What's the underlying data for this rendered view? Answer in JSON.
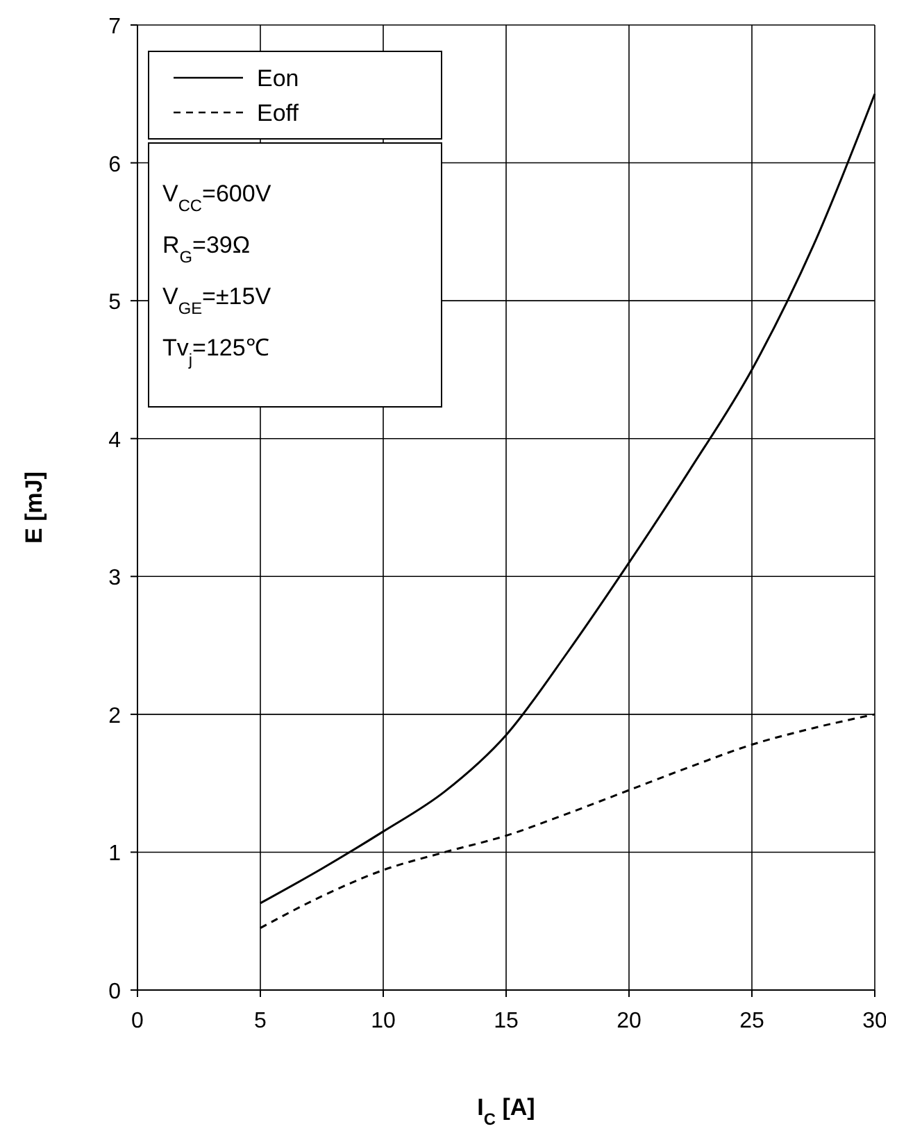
{
  "chart_data": {
    "type": "line",
    "xlabel": "I$_{C}$  [A]",
    "ylabel": "E  [mJ]",
    "xlim": [
      0,
      30
    ],
    "xticks": [
      0,
      5,
      10,
      15,
      20,
      25,
      30
    ],
    "ylim": [
      0,
      7
    ],
    "yticks": [
      0,
      1,
      2,
      3,
      4,
      5,
      6,
      7
    ],
    "grid": true,
    "legend": "top left",
    "marker": "none",
    "series": [
      {
        "name": "Eon",
        "color": "#000000",
        "line_style": "solid",
        "x": [
          5,
          7.5,
          10,
          12.5,
          15,
          17.5,
          20,
          22.5,
          25,
          27.5,
          30
        ],
        "values": [
          0.63,
          0.88,
          1.15,
          1.44,
          1.85,
          2.45,
          3.1,
          3.78,
          4.5,
          5.4,
          6.5
        ]
      },
      {
        "name": "Eoff",
        "color": "#000000",
        "line_style": "dashed",
        "x": [
          5,
          7.5,
          10,
          12.5,
          15,
          17.5,
          20,
          22.5,
          25,
          27.5,
          30
        ],
        "values": [
          0.45,
          0.68,
          0.87,
          1.0,
          1.12,
          1.28,
          1.45,
          1.62,
          1.78,
          1.9,
          2.0
        ]
      }
    ],
    "annotations": [
      "V$_{CC}$=600V",
      "R$_{G}$=39Ω",
      "V$_{GE}$=±15V",
      "Tv$_{j}$=125℃"
    ]
  }
}
